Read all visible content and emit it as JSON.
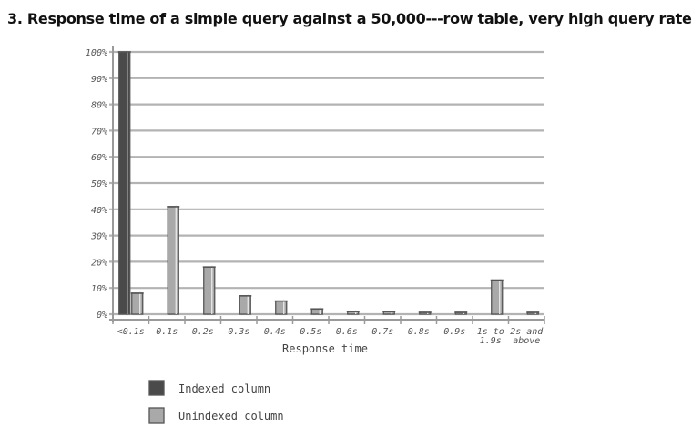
{
  "chart_data": {
    "type": "bar",
    "title": "3. Response time of a simple query against a 50,000---row table, very high query rate",
    "xlabel": "Response time",
    "ylabel": "",
    "ylim": [
      0,
      100
    ],
    "yticks": [
      "0%",
      "10%",
      "20%",
      "30%",
      "40%",
      "50%",
      "60%",
      "70%",
      "80%",
      "90%",
      "100%"
    ],
    "categories": [
      [
        "<0.1s"
      ],
      [
        "0.1s"
      ],
      [
        "0.2s"
      ],
      [
        "0.3s"
      ],
      [
        "0.4s"
      ],
      [
        "0.5s"
      ],
      [
        "0.6s"
      ],
      [
        "0.7s"
      ],
      [
        "0.8s"
      ],
      [
        "0.9s"
      ],
      [
        "1s to",
        "1.9s"
      ],
      [
        "2s and",
        "above"
      ]
    ],
    "series": [
      {
        "name": "Indexed column",
        "color": "#4a4a4a",
        "values": [
          100,
          0,
          0,
          0,
          0,
          0,
          0,
          0,
          0,
          0,
          0,
          0
        ]
      },
      {
        "name": "Unindexed column",
        "color": "#a9a9a9",
        "values": [
          8,
          41,
          18,
          7,
          5,
          2,
          1,
          1,
          0.5,
          0.5,
          13,
          0.5
        ]
      }
    ],
    "grid": true,
    "legend": "bottom-left"
  }
}
